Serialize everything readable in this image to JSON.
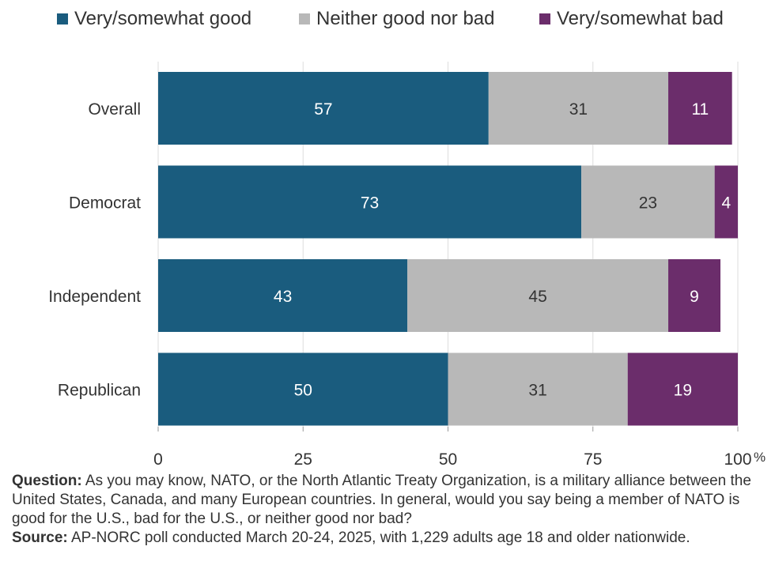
{
  "chart_data": {
    "type": "bar",
    "orientation": "horizontal",
    "stacked": true,
    "categories": [
      "Overall",
      "Democrat",
      "Independent",
      "Republican"
    ],
    "series": [
      {
        "name": "Very/somewhat good",
        "color": "#1a5c7e",
        "values": [
          57,
          73,
          43,
          50
        ]
      },
      {
        "name": "Neither good nor bad",
        "color": "#b8b8b8",
        "values": [
          31,
          23,
          45,
          31
        ]
      },
      {
        "name": "Very/somewhat bad",
        "color": "#6b2d6b",
        "values": [
          11,
          4,
          9,
          19
        ]
      }
    ],
    "xlim": [
      0,
      100
    ],
    "xticks": [
      0,
      25,
      50,
      75,
      100
    ],
    "xunit": "%",
    "grid": true,
    "legend_position": "top"
  },
  "notes": {
    "question_label": "Question:",
    "question_text": "As you may know, NATO, or the North Atlantic Treaty Organization, is a military alliance between the United States, Canada, and many European countries. In general, would you say being a member of NATO is good for the U.S., bad for the U.S., or neither good nor bad?",
    "source_label": "Source:",
    "source_text": "AP-NORC poll conducted March 20-24, 2025, with 1,229 adults age 18 and older nationwide."
  }
}
